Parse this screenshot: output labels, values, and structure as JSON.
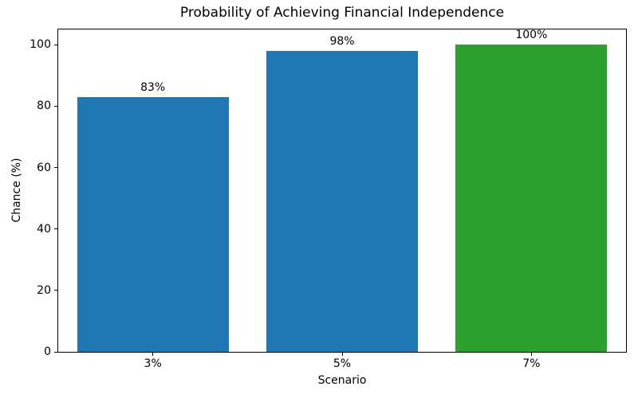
{
  "figure": {
    "background": "#ffffff"
  },
  "chart_data": {
    "type": "bar",
    "title": "Probability of Achieving Financial Independence",
    "xlabel": "Scenario",
    "ylabel": "Chance (%)",
    "categories": [
      "3%",
      "5%",
      "7%"
    ],
    "values": [
      83,
      98,
      100
    ],
    "bar_labels": [
      "83%",
      "98%",
      "100%"
    ],
    "bar_colors": [
      "#1f77b4",
      "#1f77b4",
      "#2ca02c"
    ],
    "ylim": [
      0,
      105
    ],
    "yticks": [
      0,
      20,
      40,
      60,
      80,
      100
    ],
    "bar_width_fraction": 0.8,
    "grid": false,
    "legend_position": "none",
    "spine_color": "#000000",
    "text_color": "#000000"
  }
}
